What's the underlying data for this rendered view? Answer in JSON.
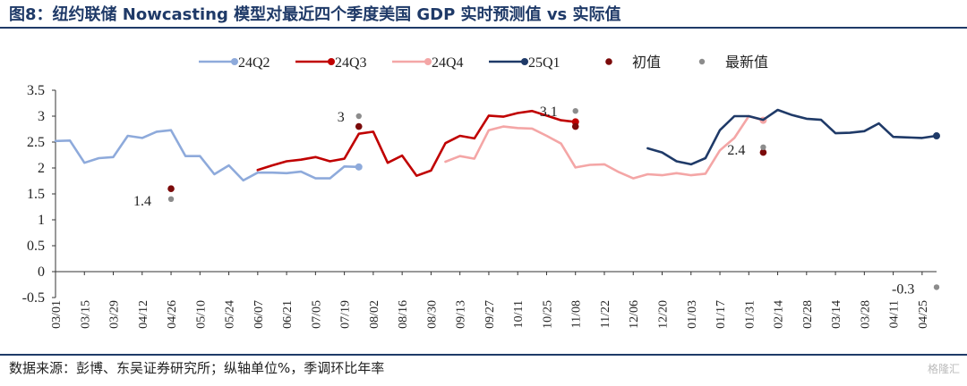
{
  "figure": {
    "title": "图8：纽约联储 Nowcasting 模型对最近四个季度美国 GDP 实时预测值 vs 实际值",
    "source": "数据来源：彭博、东吴证券研究所；纵轴单位%，季调环比年率",
    "watermark": "格隆汇"
  },
  "chart_data": {
    "type": "line",
    "x_tick_labels": [
      "03/01",
      "03/15",
      "03/29",
      "04/12",
      "04/26",
      "05/10",
      "05/24",
      "06/07",
      "06/21",
      "07/05",
      "07/19",
      "08/02",
      "08/16",
      "08/30",
      "09/13",
      "09/27",
      "10/11",
      "10/25",
      "11/08",
      "11/22",
      "12/06",
      "12/20",
      "01/03",
      "01/17",
      "01/31",
      "02/14",
      "02/28",
      "03/14",
      "03/28",
      "04/11",
      "04/25"
    ],
    "ylim": [
      -0.5,
      3.5
    ],
    "y_ticks": [
      -0.5,
      0,
      0.5,
      1,
      1.5,
      2,
      2.5,
      3,
      3.5
    ],
    "y_tick_labels": [
      "-0.5",
      "0",
      "0.5",
      "1",
      "1.5",
      "2",
      "2.5",
      "3",
      "3.5"
    ],
    "series": [
      {
        "name": "24Q2",
        "color": "#8eaadb",
        "points": [
          [
            0,
            2.52
          ],
          [
            1,
            2.53
          ],
          [
            2,
            2.1
          ],
          [
            3,
            2.19
          ],
          [
            4,
            2.21
          ],
          [
            5,
            2.62
          ],
          [
            6,
            2.58
          ],
          [
            7,
            2.7
          ],
          [
            8,
            2.73
          ],
          [
            9,
            2.23
          ],
          [
            10,
            2.23
          ],
          [
            11,
            1.88
          ],
          [
            12,
            2.05
          ],
          [
            13,
            1.76
          ],
          [
            14,
            1.91
          ],
          [
            15,
            1.91
          ],
          [
            16,
            1.9
          ],
          [
            17,
            1.93
          ],
          [
            18,
            1.8
          ],
          [
            19,
            1.8
          ],
          [
            20,
            2.03
          ],
          [
            21,
            2.02
          ]
        ]
      },
      {
        "name": "24Q3",
        "color": "#c00000",
        "points": [
          [
            14,
            1.96
          ],
          [
            15,
            2.05
          ],
          [
            16,
            2.13
          ],
          [
            17,
            2.16
          ],
          [
            18,
            2.21
          ],
          [
            19,
            2.13
          ],
          [
            20,
            2.18
          ],
          [
            21,
            2.66
          ],
          [
            22,
            2.7
          ],
          [
            23,
            2.1
          ],
          [
            24,
            2.24
          ],
          [
            25,
            1.85
          ],
          [
            26,
            1.95
          ],
          [
            27,
            2.48
          ],
          [
            28,
            2.62
          ],
          [
            29,
            2.57
          ],
          [
            30,
            3.01
          ],
          [
            31,
            2.99
          ],
          [
            32,
            3.06
          ],
          [
            33,
            3.1
          ],
          [
            34,
            3.01
          ],
          [
            35,
            2.92
          ],
          [
            36,
            2.89
          ]
        ]
      },
      {
        "name": "24Q4",
        "color": "#f4a6a6",
        "points": [
          [
            27,
            2.12
          ],
          [
            28,
            2.23
          ],
          [
            29,
            2.18
          ],
          [
            30,
            2.73
          ],
          [
            31,
            2.8
          ],
          [
            32,
            2.77
          ],
          [
            33,
            2.76
          ],
          [
            34,
            2.62
          ],
          [
            35,
            2.47
          ],
          [
            36,
            2.01
          ],
          [
            37,
            2.06
          ],
          [
            38,
            2.07
          ],
          [
            39,
            1.92
          ],
          [
            40,
            1.8
          ],
          [
            41,
            1.88
          ],
          [
            42,
            1.86
          ],
          [
            43,
            1.9
          ],
          [
            44,
            1.86
          ],
          [
            45,
            1.89
          ],
          [
            46,
            2.34
          ],
          [
            47,
            2.58
          ],
          [
            48,
            3.0
          ],
          [
            49,
            2.92
          ]
        ]
      },
      {
        "name": "25Q1",
        "color": "#1f3a68",
        "points": [
          [
            41,
            2.38
          ],
          [
            42,
            2.3
          ],
          [
            43,
            2.13
          ],
          [
            44,
            2.07
          ],
          [
            45,
            2.19
          ],
          [
            46,
            2.73
          ],
          [
            47,
            3.0
          ],
          [
            48,
            3.0
          ],
          [
            49,
            2.93
          ],
          [
            50,
            3.12
          ],
          [
            51,
            3.02
          ],
          [
            52,
            2.95
          ],
          [
            53,
            2.93
          ],
          [
            54,
            2.67
          ],
          [
            55,
            2.68
          ],
          [
            56,
            2.71
          ],
          [
            57,
            2.86
          ],
          [
            58,
            2.6
          ],
          [
            59,
            2.59
          ],
          [
            60,
            2.58
          ],
          [
            61,
            2.62
          ]
        ]
      }
    ],
    "initial_label": "初值",
    "latest_label": "最新值",
    "initial_color": "#7b0a0a",
    "latest_color": "#8c8c8c",
    "initial_values": [
      {
        "quarter": "24Q2",
        "x": 8,
        "y": 1.6
      },
      {
        "quarter": "24Q3",
        "x": 21,
        "y": 2.8
      },
      {
        "quarter": "24Q4",
        "x": 36,
        "y": 2.8
      },
      {
        "quarter": "25Q1",
        "x": 49,
        "y": 2.3
      }
    ],
    "latest_values": [
      {
        "quarter": "24Q2",
        "x": 8,
        "y": 1.4
      },
      {
        "quarter": "24Q3",
        "x": 21,
        "y": 3.0
      },
      {
        "quarter": "24Q4",
        "x": 36,
        "y": 3.1
      },
      {
        "quarter": "25Q1",
        "x": 49,
        "y": 2.4
      },
      {
        "quarter": "25Q1",
        "x": 61,
        "y": -0.3
      }
    ],
    "annotations": [
      {
        "text": "1.4",
        "x": 8,
        "y": 1.4
      },
      {
        "text": "3",
        "x": 21,
        "y": 3.0
      },
      {
        "text": "3.1",
        "x": 36,
        "y": 3.1
      },
      {
        "text": "2.4",
        "x": 49,
        "y": 2.4
      },
      {
        "text": "-0.3",
        "x": 61,
        "y": -0.3
      }
    ],
    "legend_position": "top",
    "grid": false
  }
}
